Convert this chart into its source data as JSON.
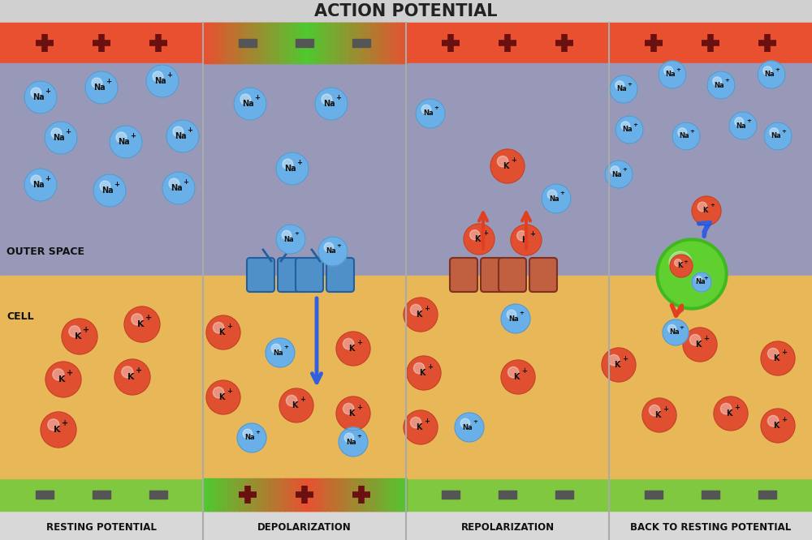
{
  "title": "ACTION POTENTIAL",
  "panels": [
    "RESTING POTENTIAL",
    "DEPOLARIZATION",
    "REPOLARIZATION",
    "BACK TO RESTING POTENTIAL"
  ],
  "na_color": "#6ab0e8",
  "k_color": "#e05030",
  "sym_color": "#6b1010",
  "outer_color": "#9898b8",
  "cell_color": "#e8b858",
  "top_bar_color": "#e85030",
  "bot_bar_green": "#80c840",
  "bot_bar_red": "#e85030",
  "bg_color": "#d8d8d8",
  "channel_na_color": "#5090c8",
  "channel_k_color": "#c06040",
  "arrow_blue": "#3060e0",
  "arrow_red": "#e04020",
  "pump_color": "#60d030"
}
